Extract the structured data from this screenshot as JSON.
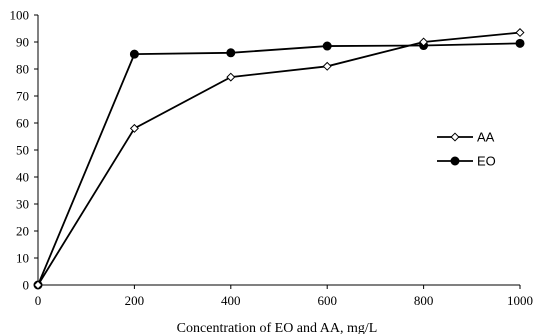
{
  "chart_data": {
    "type": "line",
    "title": "",
    "xlabel": "Concentration of EO and AA, mg/L",
    "ylabel": "",
    "x": [
      0,
      200,
      400,
      600,
      800,
      1000
    ],
    "xticks": [
      "0",
      "200",
      "400",
      "600",
      "800",
      "1000"
    ],
    "xlim": [
      0,
      1000
    ],
    "yticks": [
      "0",
      "10",
      "20",
      "30",
      "40",
      "50",
      "60",
      "70",
      "80",
      "90",
      "100"
    ],
    "ylim": [
      0,
      100
    ],
    "grid": false,
    "legend_position": "right",
    "series": [
      {
        "name": "AA",
        "values": [
          0,
          58,
          77,
          81,
          90,
          93.5
        ],
        "color": "#000000",
        "marker": "diamond-open"
      },
      {
        "name": "EO",
        "values": [
          0,
          85.5,
          86,
          88.5,
          88.7,
          89.5
        ],
        "color": "#000000",
        "marker": "circle-filled"
      }
    ]
  }
}
